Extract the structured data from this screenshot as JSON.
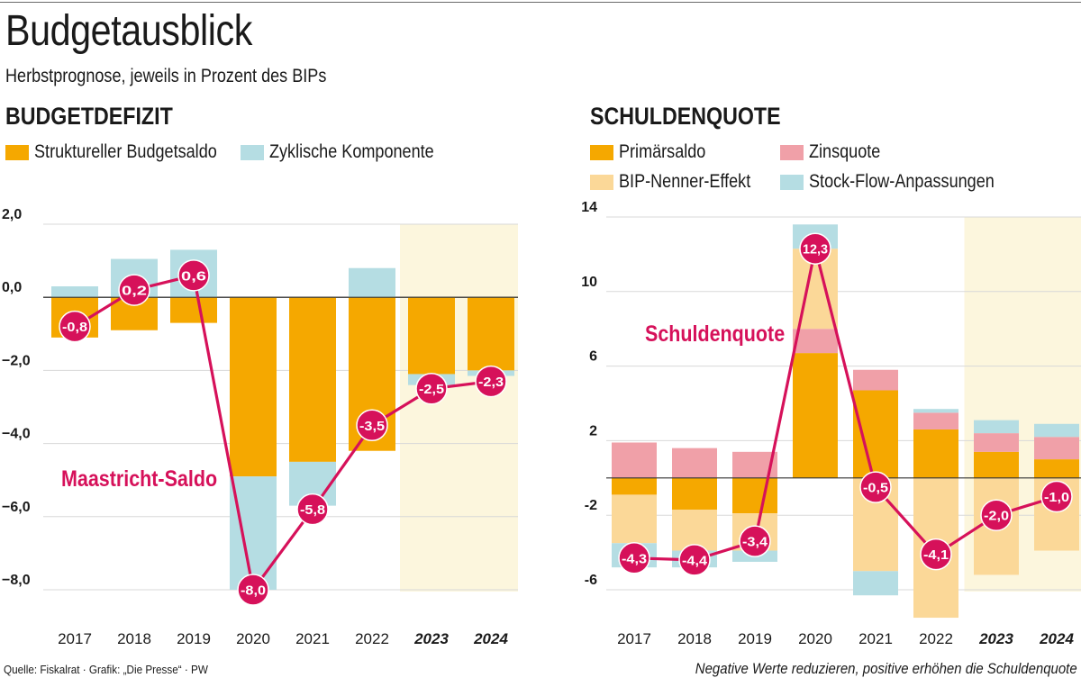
{
  "header": {
    "title": "Budgetausblick",
    "subtitle": "Herbstprognose, jeweils in Prozent des BIPs"
  },
  "footer": {
    "source": "Quelle: Fiskalrat · Grafik: „Die Presse“ · PW",
    "note": "Negative Werte reduzieren, positive erhöhen die Schuldenquote"
  },
  "colors": {
    "orange": "#f5a800",
    "lightblue": "#b5dde3",
    "pink": "#f0a0a8",
    "lightorange": "#fbd898",
    "magenta": "#d6115a",
    "forecast_bg": "#fcf6dd"
  },
  "chart_data": [
    {
      "type": "bar",
      "title": "BUDGETDEFIZIT",
      "stacked": true,
      "categories": [
        "2017",
        "2018",
        "2019",
        "2020",
        "2021",
        "2022",
        "2023",
        "2024"
      ],
      "forecast_categories": [
        "2023",
        "2024"
      ],
      "yticks": [
        "2,0",
        "0,0",
        "−2,0",
        "−4,0",
        "−6,0",
        "−8,0"
      ],
      "ylim": [
        -8,
        2
      ],
      "legend": [
        "Struktureller Budgetsaldo",
        "Zyklische Komponente"
      ],
      "series": [
        {
          "name": "Struktureller Budgetsaldo",
          "color_key": "orange",
          "values": [
            -1.1,
            -0.9,
            -0.7,
            -4.9,
            -4.5,
            -4.2,
            -2.1,
            -2.0
          ]
        },
        {
          "name": "Zyklische Komponente",
          "color_key": "lightblue",
          "values": [
            0.3,
            1.05,
            1.3,
            -3.1,
            -1.2,
            0.8,
            -0.3,
            -0.15
          ]
        }
      ],
      "line": {
        "name": "Maastricht-Saldo",
        "values": [
          -0.8,
          0.2,
          0.6,
          -8.0,
          -5.8,
          -3.5,
          -2.5,
          -2.3
        ],
        "labels": [
          "-0,8",
          "0,2",
          "0,6",
          "-8,0",
          "-5,8",
          "-3,5",
          "-2,5",
          "-2,3"
        ]
      }
    },
    {
      "type": "bar",
      "title": "SCHULDENQUOTE",
      "stacked": true,
      "categories": [
        "2017",
        "2018",
        "2019",
        "2020",
        "2021",
        "2022",
        "2023",
        "2024"
      ],
      "forecast_categories": [
        "2023",
        "2024"
      ],
      "yticks": [
        "14",
        "10",
        "6",
        "2",
        "-2",
        "-6"
      ],
      "ylim": [
        -6,
        14
      ],
      "legend": [
        "Primärsaldo",
        "Zinsquote",
        "BIP-Nenner-Effekt",
        "Stock-Flow-Anpassungen"
      ],
      "series": [
        {
          "name": "Primärsaldo",
          "color_key": "orange",
          "values": [
            -0.9,
            -1.7,
            -1.9,
            6.7,
            4.7,
            2.6,
            1.4,
            1.0
          ]
        },
        {
          "name": "Zinsquote",
          "color_key": "pink",
          "values": [
            1.9,
            1.6,
            1.4,
            1.3,
            1.1,
            0.9,
            1.0,
            1.2
          ]
        },
        {
          "name": "BIP-Nenner-Effekt",
          "color_key": "lightorange",
          "values": [
            -2.6,
            -2.2,
            -2.0,
            4.3,
            -5.0,
            -7.5,
            -5.2,
            -3.9
          ]
        },
        {
          "name": "Stock-Flow-Anpassungen",
          "color_key": "lightblue",
          "values": [
            -1.3,
            -0.9,
            -0.6,
            1.3,
            -1.3,
            0.2,
            0.7,
            0.7
          ]
        }
      ],
      "line": {
        "name": "Schuldenquote",
        "values": [
          -4.3,
          -4.4,
          -3.4,
          12.3,
          -0.5,
          -4.1,
          -2.0,
          -1.0
        ],
        "labels": [
          "-4,3",
          "-4,4",
          "-3,4",
          "12,3",
          "-0,5",
          "-4,1",
          "-2,0",
          "-1,0"
        ]
      }
    }
  ]
}
